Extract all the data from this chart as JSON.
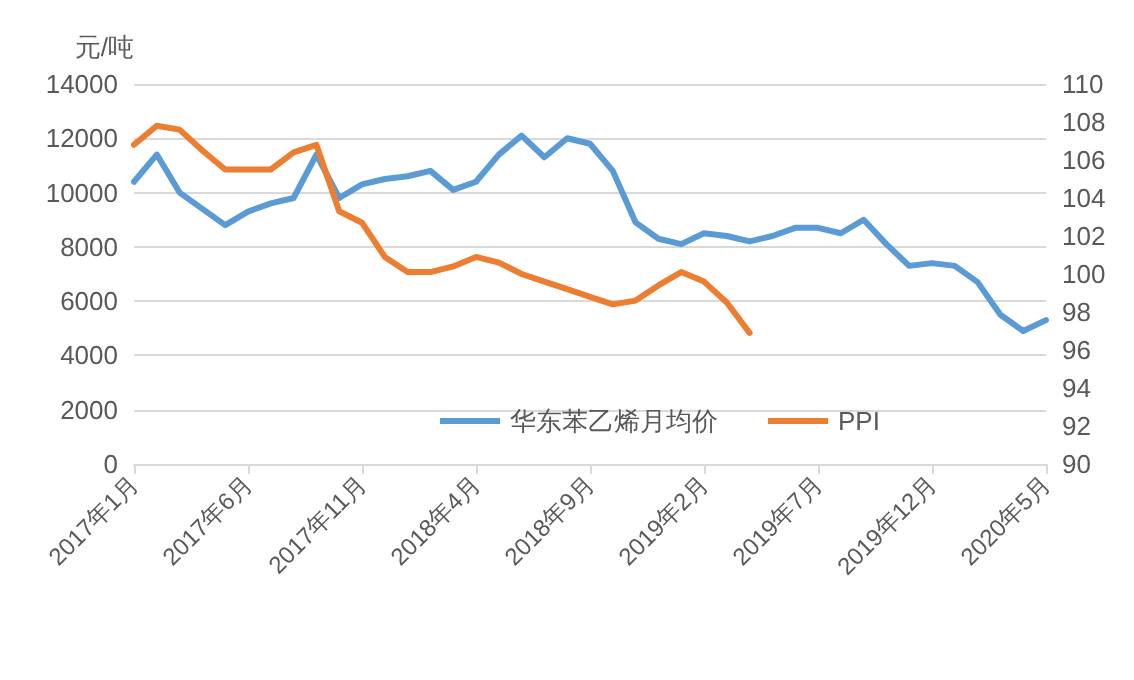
{
  "chart_data": {
    "type": "line",
    "ylabel": "元/吨",
    "categories": [
      "2017年1月",
      null,
      null,
      null,
      null,
      "2017年6月",
      null,
      null,
      null,
      null,
      "2017年11月",
      null,
      null,
      null,
      null,
      "2018年4月",
      null,
      null,
      null,
      null,
      "2018年9月",
      null,
      null,
      null,
      null,
      "2019年2月",
      null,
      null,
      null,
      null,
      "2019年7月",
      null,
      null,
      null,
      null,
      "2019年12月",
      null,
      null,
      null,
      null,
      "2020年5月"
    ],
    "series": [
      {
        "name": "华东苯乙烯月均价",
        "color": "#5b9bd5",
        "values": [
          10400,
          11400,
          10000,
          9400,
          8800,
          9300,
          9600,
          9800,
          11400,
          9800,
          10300,
          10500,
          10600,
          10800,
          10100,
          10400,
          11400,
          12100,
          11300,
          12000,
          11800,
          10800,
          8900,
          8300,
          8100,
          8500,
          8400,
          8200,
          8400,
          8700,
          8700,
          8500,
          9000,
          8100,
          7300,
          7400,
          7300,
          6700,
          5500,
          4900,
          5300
        ]
      },
      {
        "name": "PPI",
        "color": "#ed7d31",
        "axis": "y2",
        "values": [
          106.8,
          107.8,
          107.6,
          106.5,
          105.5,
          105.5,
          105.5,
          106.4,
          106.8,
          103.3,
          102.7,
          100.9,
          100.1,
          100.1,
          100.4,
          100.9,
          100.6,
          100.0,
          99.6,
          99.2,
          98.8,
          98.4,
          98.6,
          99.4,
          100.1,
          99.6,
          98.5,
          96.9,
          null,
          null,
          null,
          null,
          null,
          null,
          null,
          null,
          null,
          null,
          null,
          null,
          null
        ]
      }
    ],
    "ylim": [
      0,
      14000
    ],
    "yticks": [
      0,
      2000,
      4000,
      6000,
      8000,
      10000,
      12000,
      14000
    ],
    "y2lim": [
      90,
      110
    ],
    "y2ticks": [
      90,
      92,
      94,
      96,
      98,
      100,
      102,
      104,
      106,
      108,
      110
    ],
    "grid": "y",
    "legend": "bottom",
    "marker": "none",
    "line_style": "solid"
  }
}
